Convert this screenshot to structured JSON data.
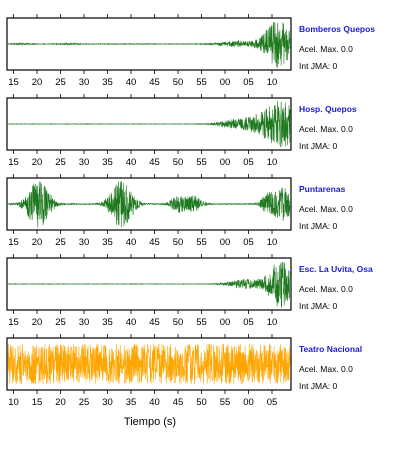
{
  "chart_data": {
    "type": "line",
    "xlabel": "Tiempo (s)",
    "panels": [
      {
        "station": "Bomberos Quepos",
        "acel_label": "Acel. Max. 0.0",
        "jma_label": "Int JMA: 0",
        "color": "#1f7a1f",
        "ticks": [
          "15",
          "20",
          "25",
          "30",
          "35",
          "40",
          "45",
          "50",
          "55",
          "00",
          "05",
          "10"
        ],
        "tick_start": 15,
        "tick_end": 70,
        "bursts": [
          {
            "t": 17,
            "amp": 0.03,
            "width": 1.5
          },
          {
            "t": 27,
            "amp": 0.03,
            "width": 1.5
          },
          {
            "t": 60,
            "amp": 0.12,
            "width": 4
          },
          {
            "t": 68,
            "amp": 1.0,
            "width": 3
          }
        ],
        "noise": 0.015
      },
      {
        "station": "Hosp. Quepos",
        "acel_label": "Acel. Max. 0.0",
        "jma_label": "Int JMA: 0",
        "color": "#1f7a1f",
        "ticks": [
          "15",
          "20",
          "25",
          "30",
          "35",
          "40",
          "45",
          "50",
          "55",
          "00",
          "05",
          "10"
        ],
        "tick_start": 15,
        "tick_end": 70,
        "bursts": [
          {
            "t": 60,
            "amp": 0.2,
            "width": 4
          },
          {
            "t": 65,
            "amp": 0.35,
            "width": 3
          },
          {
            "t": 69,
            "amp": 1.0,
            "width": 3
          }
        ],
        "noise": 0.01
      },
      {
        "station": "Puntarenas",
        "acel_label": "Acel. Max. 0.0",
        "jma_label": "Int JMA: 0",
        "color": "#1f7a1f",
        "ticks": [
          "15",
          "20",
          "25",
          "30",
          "35",
          "40",
          "45",
          "50",
          "55",
          "00",
          "05",
          "10"
        ],
        "tick_start": 15,
        "tick_end": 70,
        "bursts": [
          {
            "t": 20.5,
            "amp": 1.0,
            "width": 2.5
          },
          {
            "t": 37,
            "amp": 1.0,
            "width": 2.5
          },
          {
            "t": 48,
            "amp": 0.3,
            "width": 1.5
          },
          {
            "t": 51,
            "amp": 0.35,
            "width": 2
          },
          {
            "t": 66,
            "amp": 0.4,
            "width": 1.5
          },
          {
            "t": 69,
            "amp": 0.7,
            "width": 2
          }
        ],
        "noise": 0.02
      },
      {
        "station": "Esc. La Uvita, Osa",
        "acel_label": "Acel. Max. 0.0",
        "jma_label": "Int JMA: 0",
        "color": "#1f7a1f",
        "ticks": [
          "15",
          "20",
          "25",
          "30",
          "35",
          "40",
          "45",
          "50",
          "55",
          "00",
          "05",
          "10"
        ],
        "tick_start": 15,
        "tick_end": 70,
        "bursts": [
          {
            "t": 62,
            "amp": 0.2,
            "width": 4
          },
          {
            "t": 68.5,
            "amp": 1.0,
            "width": 2.5
          }
        ],
        "noise": 0.01
      },
      {
        "station": "Teatro Nacional",
        "acel_label": "Acel. Max. 0.0",
        "jma_label": "Int JMA: 0",
        "color": "#ffa500",
        "ticks": [
          "10",
          "15",
          "20",
          "25",
          "30",
          "35",
          "40",
          "45",
          "50",
          "55",
          "00",
          "05"
        ],
        "tick_start": 10,
        "tick_end": 65,
        "bursts": [],
        "noise": 0.85
      }
    ]
  }
}
